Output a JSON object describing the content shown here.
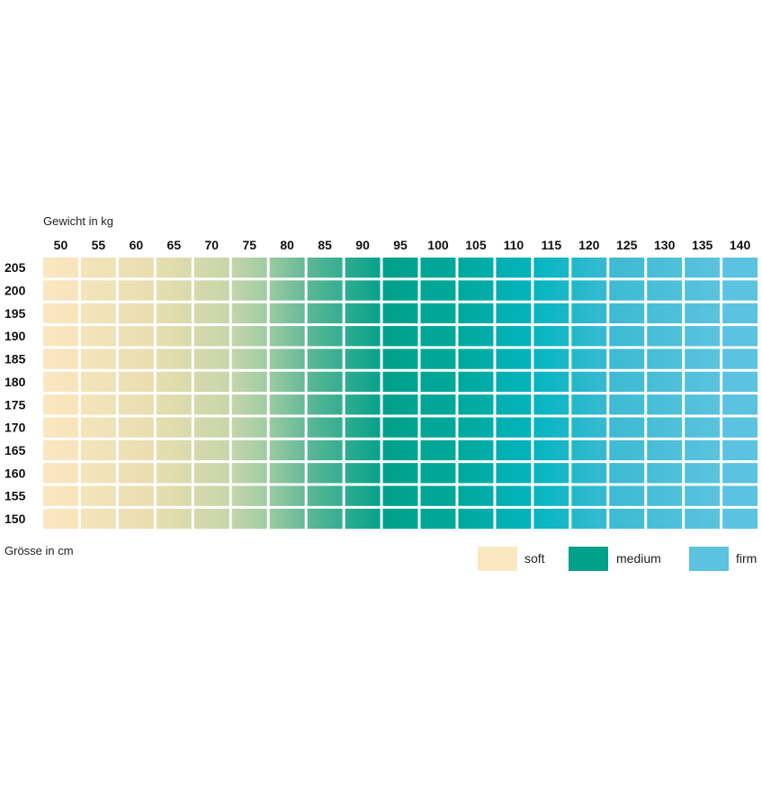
{
  "chart_data": {
    "type": "heatmap",
    "xlabel": "Gewicht in kg",
    "ylabel": "Grösse in cm",
    "x": [
      50,
      55,
      60,
      65,
      70,
      75,
      80,
      85,
      90,
      95,
      100,
      105,
      110,
      115,
      120,
      125,
      130,
      135,
      140
    ],
    "y": [
      205,
      200,
      195,
      190,
      185,
      180,
      175,
      170,
      165,
      160,
      155,
      150
    ],
    "legend": [
      {
        "label": "soft",
        "color": "#FBE7C0"
      },
      {
        "label": "medium",
        "color": "#00A08A"
      },
      {
        "label": "firm",
        "color": "#5BC3DF"
      }
    ],
    "color_stops": [
      {
        "kg": 50,
        "color": "#FBE7C0"
      },
      {
        "kg": 65,
        "color": "#E8DDAF"
      },
      {
        "kg": 75,
        "color": "#C3D5A9"
      },
      {
        "kg": 80,
        "color": "#9ACAA1"
      },
      {
        "kg": 85,
        "color": "#5DB796"
      },
      {
        "kg": 95,
        "color": "#00A08A"
      },
      {
        "kg": 105,
        "color": "#00A99C"
      },
      {
        "kg": 115,
        "color": "#04B5BF"
      },
      {
        "kg": 125,
        "color": "#3DBAD3"
      },
      {
        "kg": 140,
        "color": "#5BC3DF"
      }
    ]
  }
}
